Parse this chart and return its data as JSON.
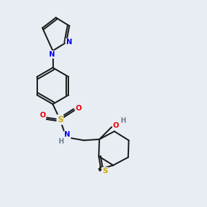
{
  "background_color": "#e8edf4",
  "fig_width": 3.0,
  "fig_height": 3.0,
  "dpi": 100,
  "bond_color": "#1a1a1a",
  "bond_lw": 1.5,
  "atom_colors": {
    "N": "#0000ee",
    "S": "#ccaa00",
    "O": "#ee0000",
    "H": "#708090",
    "C": "#1a1a1a"
  },
  "font_size_atom": 7.5,
  "font_size_S": 8.5
}
